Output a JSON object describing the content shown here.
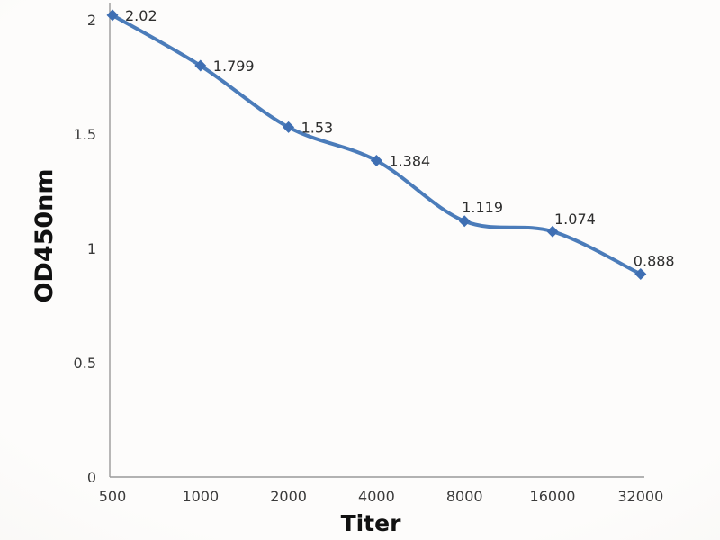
{
  "chart_data": {
    "type": "line",
    "title": "",
    "xlabel": "Titer",
    "ylabel": "OD450nm",
    "x": [
      500,
      1000,
      2000,
      4000,
      8000,
      16000,
      32000
    ],
    "x_tick_labels": [
      "500",
      "1000",
      "2000",
      "4000",
      "8000",
      "16000",
      "32000"
    ],
    "values": [
      2.02,
      1.799,
      1.53,
      1.384,
      1.119,
      1.074,
      0.888
    ],
    "point_labels": [
      "2.02",
      "1.799",
      "1.53",
      "1.384",
      "1.119",
      "1.074",
      "0.888"
    ],
    "y_ticks": [
      {
        "value": 2,
        "label": "2"
      },
      {
        "value": 1.5,
        "label": "1.5"
      },
      {
        "value": 1,
        "label": "1"
      },
      {
        "value": 0.5,
        "label": "0.5"
      },
      {
        "value": 0,
        "label": "0"
      }
    ],
    "ylim": [
      0,
      2.075
    ],
    "x_axis_type": "categorical-doubling",
    "grid": false,
    "legend": "none",
    "smoothed_line": true,
    "marker_shape": "diamond",
    "line_color": "#4b7cba",
    "marker_color": "#3f6fb3",
    "axis_color": "#9a9a9a",
    "text_color": "#2e2e2e"
  }
}
